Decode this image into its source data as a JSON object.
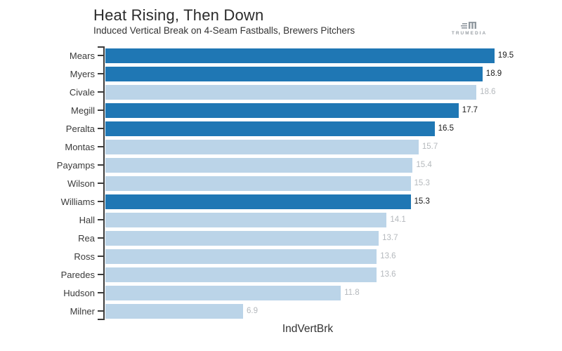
{
  "header": {
    "title": "Heat Rising, Then Down",
    "subtitle": "Induced Vertical Break on 4-Seam Fastballs, Brewers Pitchers",
    "logo_text": "TRUMEDIA"
  },
  "chart_data": {
    "type": "bar",
    "orientation": "horizontal",
    "title": "Heat Rising, Then Down",
    "subtitle": "Induced Vertical Break on 4-Seam Fastballs, Brewers Pitchers",
    "xlabel": "IndVertBrk",
    "ylabel": "",
    "xlim": [
      0,
      20.5
    ],
    "grid": false,
    "legend": false,
    "value_labels": "end-of-bar",
    "categories": [
      "Mears",
      "Myers",
      "Civale",
      "Megill",
      "Peralta",
      "Montas",
      "Payamps",
      "Wilson",
      "Williams",
      "Hall",
      "Rea",
      "Ross",
      "Paredes",
      "Hudson",
      "Milner"
    ],
    "values": [
      19.5,
      18.9,
      18.6,
      17.7,
      16.5,
      15.7,
      15.4,
      15.3,
      15.3,
      14.1,
      13.7,
      13.6,
      13.6,
      11.8,
      6.9
    ],
    "highlighted": [
      true,
      true,
      false,
      true,
      true,
      false,
      false,
      false,
      true,
      false,
      false,
      false,
      false,
      false,
      false
    ],
    "colors": {
      "bar_highlight": "#1f77b4",
      "bar_default": "#bbd4e8",
      "value_label_highlight": "#1a1a1a",
      "value_label_default": "#b5b9bd",
      "axis": "#3c3c3c"
    }
  }
}
